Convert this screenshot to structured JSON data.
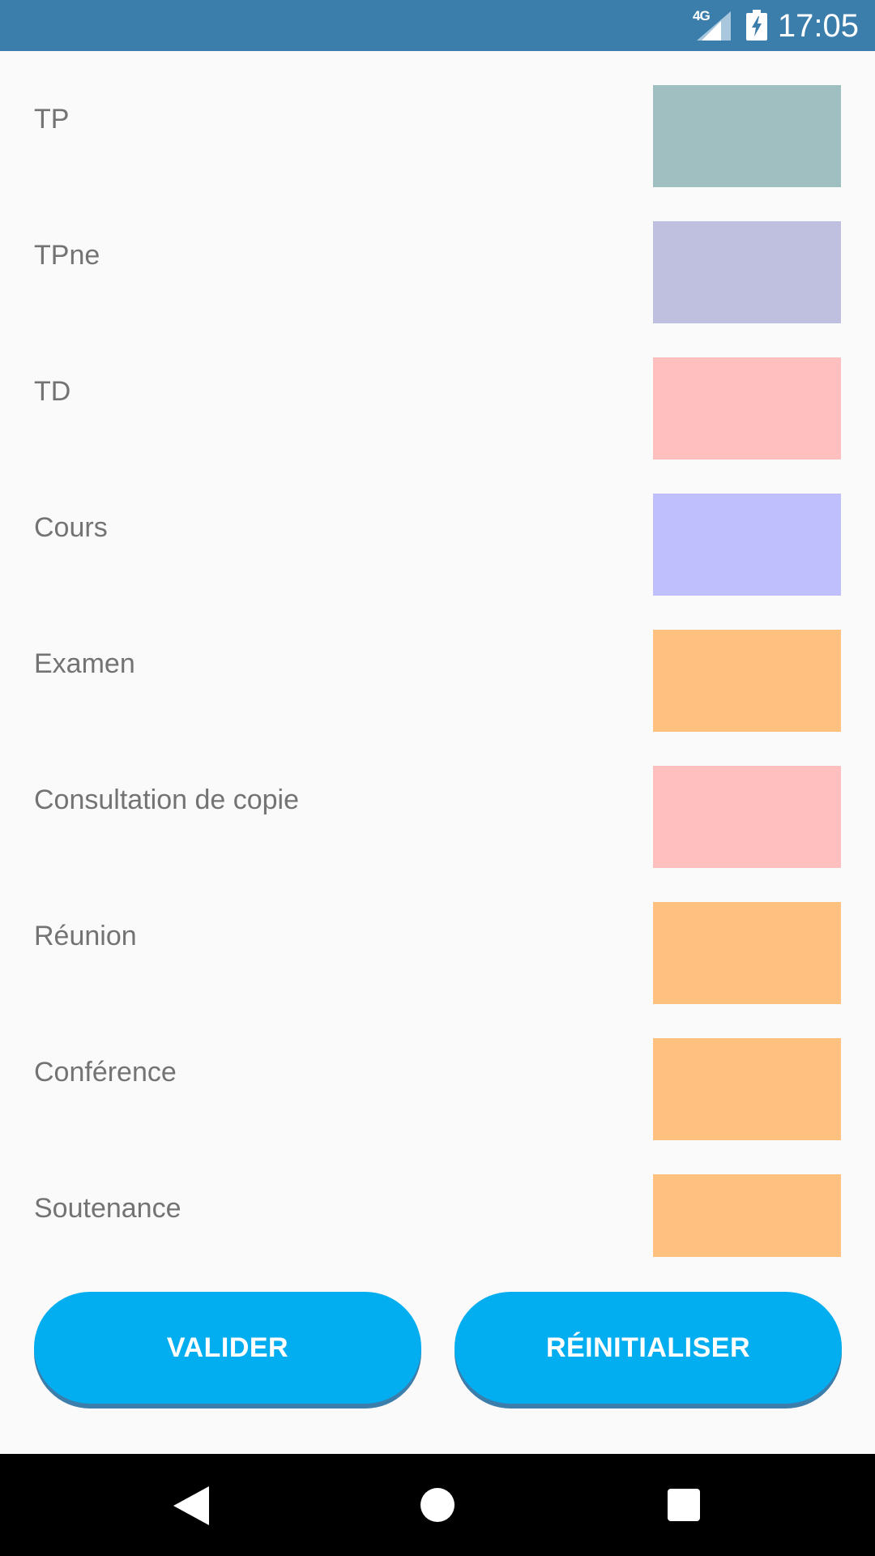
{
  "status_bar": {
    "network": "4G",
    "time": "17:05",
    "signal_icon": "signal-icon",
    "battery_icon": "battery-charging-icon"
  },
  "colors": [
    {
      "label": "TP",
      "color": "#a0bfc0"
    },
    {
      "label": "TPne",
      "color": "#bfbfe0"
    },
    {
      "label": "TD",
      "color": "#ffbfbf"
    },
    {
      "label": "Cours",
      "color": "#c0bffd"
    },
    {
      "label": "Examen",
      "color": "#ffc080"
    },
    {
      "label": "Consultation de copie",
      "color": "#ffbfbf"
    },
    {
      "label": "Réunion",
      "color": "#ffc080"
    },
    {
      "label": "Conférence",
      "color": "#ffc080"
    },
    {
      "label": "Soutenance",
      "color": "#ffc080"
    }
  ],
  "buttons": {
    "validate_label": "VALIDER",
    "reset_label": "RÉINITIALISER"
  },
  "theme": {
    "primary": "#3b7dab",
    "accent": "#03aef0"
  },
  "nav_bar": {
    "back_icon": "back-icon",
    "home_icon": "home-icon",
    "recent_icon": "recent-apps-icon"
  }
}
